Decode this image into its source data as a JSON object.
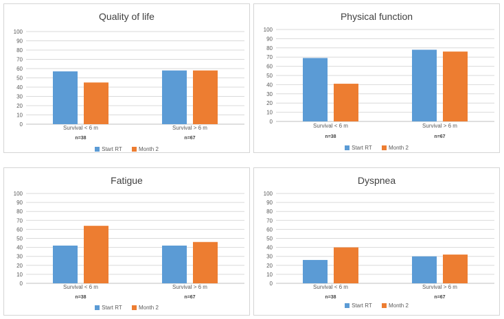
{
  "chart_data": [
    {
      "type": "bar",
      "title": "Quality of life",
      "categories": [
        "Survival < 6 m",
        "Survival > 6 m"
      ],
      "sublabels": [
        "n=38",
        "n=67"
      ],
      "series": [
        {
          "name": "Start RT",
          "values": [
            57,
            58
          ]
        },
        {
          "name": "Month 2",
          "values": [
            45,
            58
          ]
        }
      ],
      "ylim": [
        0,
        100
      ],
      "yticks": [
        0,
        10,
        20,
        30,
        40,
        50,
        60,
        70,
        80,
        90,
        100
      ],
      "grid": true,
      "legend": "bottom"
    },
    {
      "type": "bar",
      "title": "Physical function",
      "categories": [
        "Survival < 6 m",
        "Survival > 6 m"
      ],
      "sublabels": [
        "n=38",
        "n=67"
      ],
      "series": [
        {
          "name": "Start RT",
          "values": [
            69,
            78
          ]
        },
        {
          "name": "Month 2",
          "values": [
            41,
            76
          ]
        }
      ],
      "ylim": [
        0,
        100
      ],
      "yticks": [
        0,
        10,
        20,
        30,
        40,
        50,
        60,
        70,
        80,
        90,
        100
      ],
      "grid": true,
      "legend": "bottom"
    },
    {
      "type": "bar",
      "title": "Fatigue",
      "categories": [
        "Survival < 6 m",
        "Survival > 6 m"
      ],
      "sublabels": [
        "n=38",
        "n=67"
      ],
      "series": [
        {
          "name": "Start RT",
          "values": [
            42,
            42
          ]
        },
        {
          "name": "Month 2",
          "values": [
            64,
            46
          ]
        }
      ],
      "ylim": [
        0,
        100
      ],
      "yticks": [
        0,
        10,
        20,
        30,
        40,
        50,
        60,
        70,
        80,
        90,
        100
      ],
      "grid": true,
      "legend": "bottom"
    },
    {
      "type": "bar",
      "title": "Dyspnea",
      "categories": [
        "Survival < 6 m",
        "Survival > 6 m"
      ],
      "sublabels": [
        "n=38",
        "n=67"
      ],
      "series": [
        {
          "name": "Start RT",
          "values": [
            26,
            30
          ]
        },
        {
          "name": "Month 2",
          "values": [
            40,
            32
          ]
        }
      ],
      "ylim": [
        0,
        100
      ],
      "yticks": [
        0,
        10,
        20,
        30,
        40,
        50,
        60,
        70,
        80,
        90,
        100
      ],
      "grid": true,
      "legend": "bottom"
    }
  ],
  "colors": {
    "start_rt": "#5b9bd5",
    "month_2": "#ed7d31",
    "grid": "#d9d9d9",
    "text": "#595959"
  }
}
